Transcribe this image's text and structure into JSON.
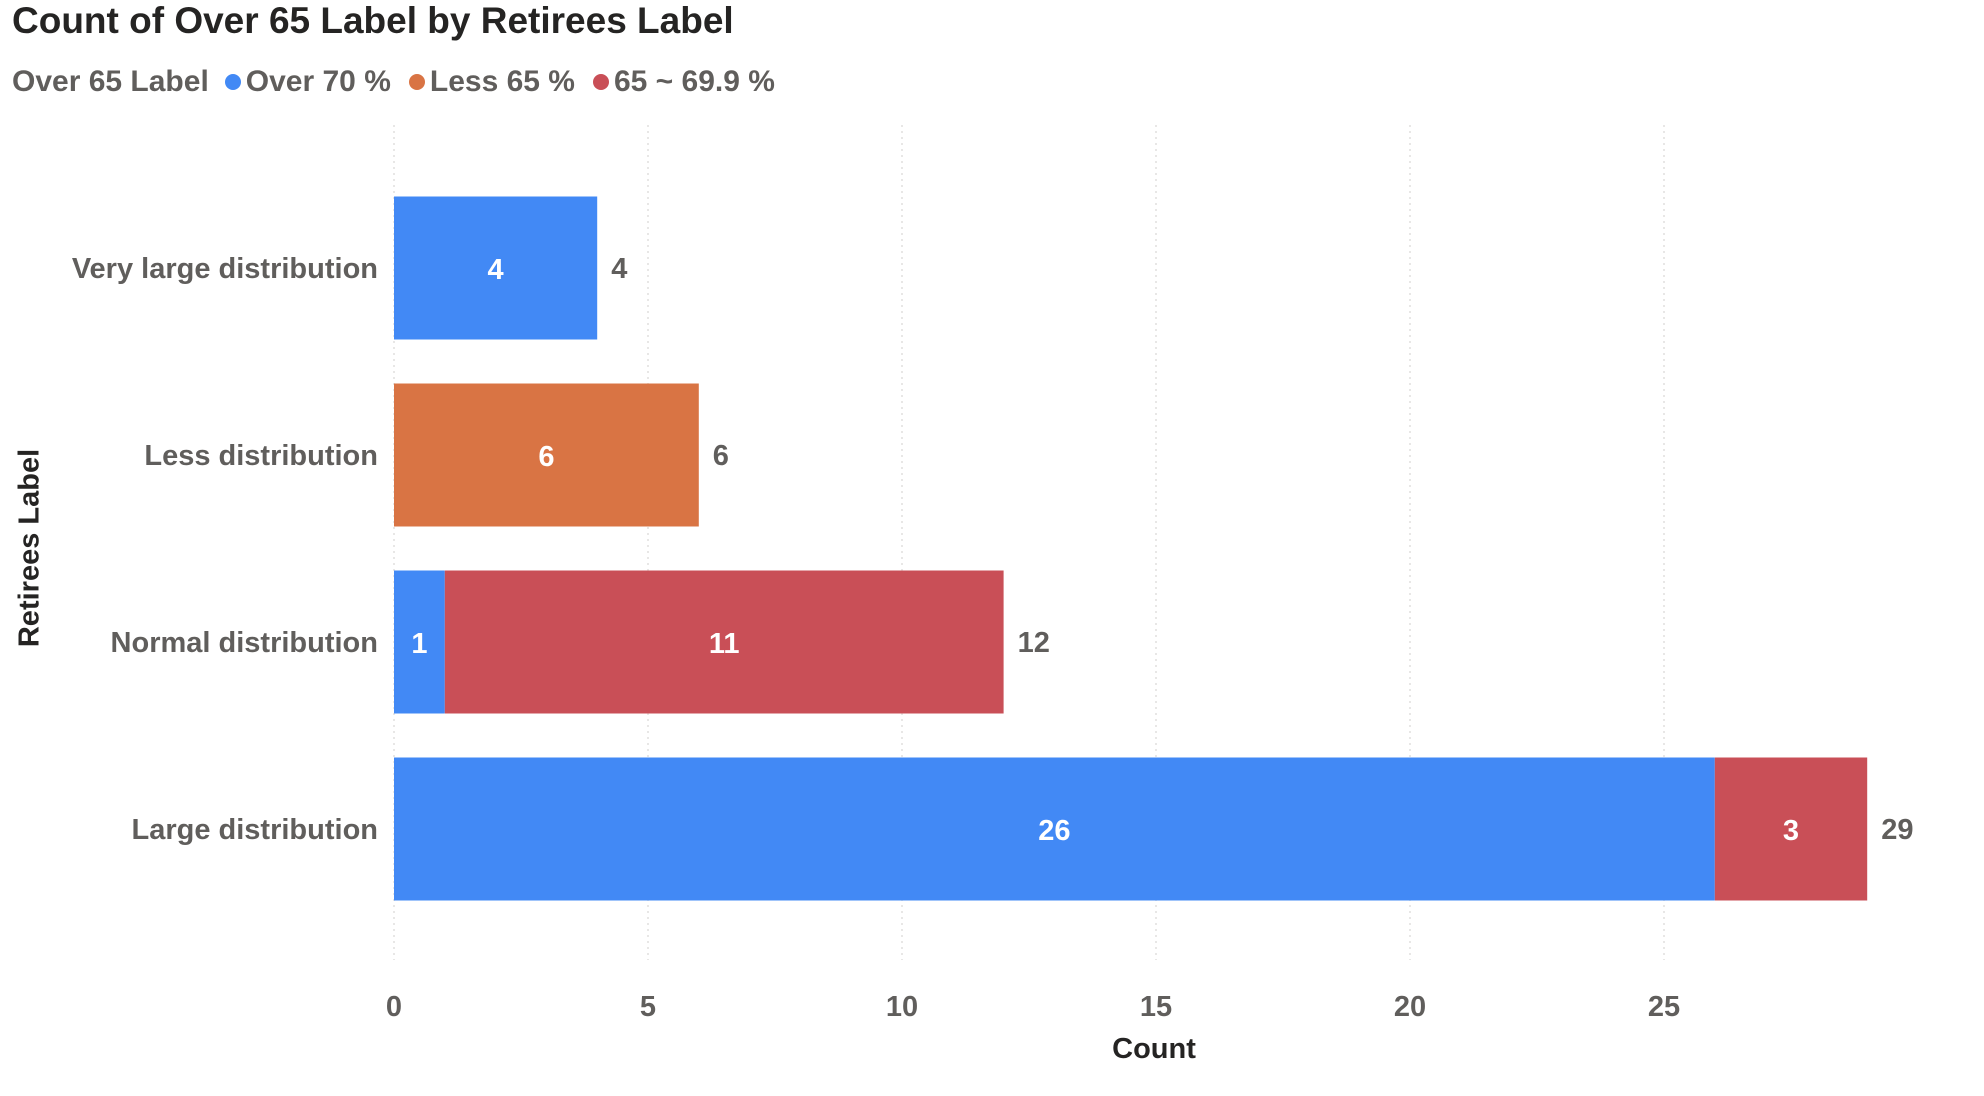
{
  "chart_data": {
    "type": "bar",
    "orientation": "horizontal",
    "stacked": true,
    "title": "Count of Over 65 Label by Retirees Label",
    "legend_title": "Over 65 Label",
    "legend_position": "top-left",
    "xlabel": "Count",
    "ylabel": "Retirees Label",
    "xlim": [
      0,
      29
    ],
    "x_ticks": [
      0,
      5,
      10,
      15,
      20,
      25
    ],
    "grid": true,
    "categories": [
      "Very large distribution",
      "Less distribution",
      "Normal distribution",
      "Large distribution"
    ],
    "series": [
      {
        "name": "Over 70 %",
        "color": "#4289f5",
        "values": [
          4,
          0,
          1,
          26
        ]
      },
      {
        "name": "Less 65 %",
        "color": "#d97444",
        "values": [
          0,
          6,
          0,
          0
        ]
      },
      {
        "name": "65 ~ 69.9 %",
        "color": "#c94f57",
        "values": [
          0,
          0,
          11,
          3
        ]
      }
    ],
    "totals": [
      4,
      6,
      12,
      29
    ]
  }
}
